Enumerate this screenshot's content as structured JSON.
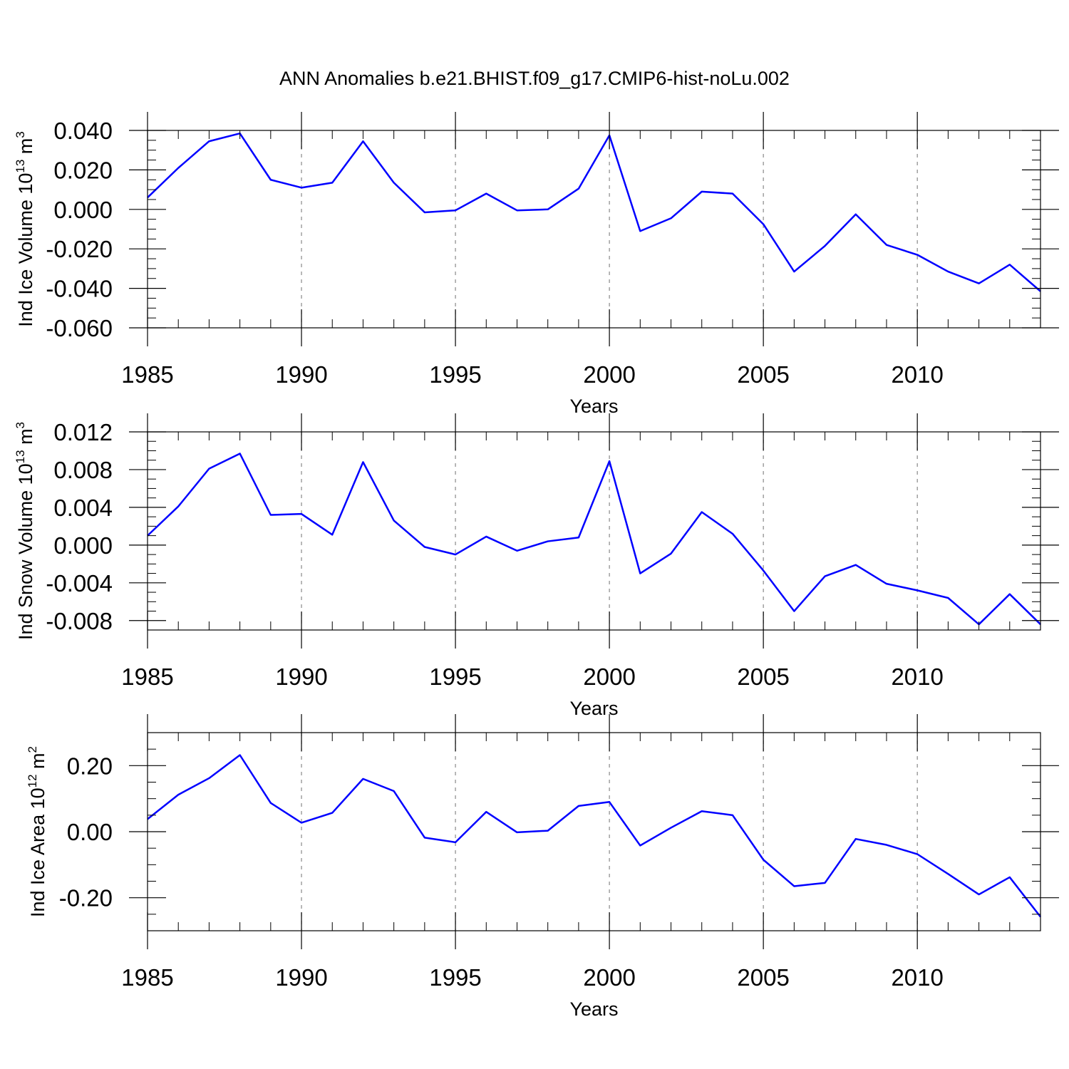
{
  "title": "ANN Anomalies b.e21.BHIST.f09_g17.CMIP6-hist-noLu.002",
  "colors": {
    "line": "#0000ff",
    "axis": "#000000",
    "grid": "#888888"
  },
  "chart_data": [
    {
      "type": "line",
      "ylabel": {
        "text": "Ind Ice Volume 10",
        "sup": "13",
        "unit": " m",
        "unit_sup": "3"
      },
      "xlabel": "Years",
      "xlim": [
        1985,
        2014
      ],
      "ylim": [
        -0.06,
        0.04
      ],
      "yticks": [
        0.04,
        0.02,
        0.0,
        -0.02,
        -0.04,
        -0.06
      ],
      "ytick_labels": [
        "0.040",
        "0.020",
        "0.000",
        "-0.020",
        "-0.040",
        "-0.060"
      ],
      "yminor_step": 0.005,
      "xticks": [
        1985,
        1990,
        1995,
        2000,
        2005,
        2010
      ],
      "xtick_labels": [
        "1985",
        "1990",
        "1995",
        "2000",
        "2005",
        "2010"
      ],
      "grid_x": true,
      "series": [
        {
          "x": [
            1985,
            1986,
            1987,
            1988,
            1989,
            1990,
            1991,
            1992,
            1993,
            1994,
            1995,
            1996,
            1997,
            1998,
            1999,
            2000,
            2001,
            2002,
            2003,
            2004,
            2005,
            2006,
            2007,
            2008,
            2009,
            2010,
            2011,
            2012,
            2013,
            2014
          ],
          "values": [
            0.006,
            0.021,
            0.0345,
            0.0385,
            0.015,
            0.011,
            0.0135,
            0.0345,
            0.0135,
            -0.0015,
            -0.0005,
            0.008,
            -0.0005,
            0.0,
            0.0105,
            0.0375,
            -0.011,
            -0.0045,
            0.009,
            0.008,
            -0.0075,
            -0.0315,
            -0.0185,
            -0.0025,
            -0.018,
            -0.023,
            -0.0315,
            -0.0375,
            -0.028,
            -0.0415
          ]
        }
      ]
    },
    {
      "type": "line",
      "ylabel": {
        "text": "Ind Snow Volume 10",
        "sup": "13",
        "unit": " m",
        "unit_sup": "3"
      },
      "xlabel": "Years",
      "xlim": [
        1985,
        2014
      ],
      "ylim": [
        -0.009,
        0.012
      ],
      "yticks": [
        0.012,
        0.008,
        0.004,
        0.0,
        -0.004,
        -0.008
      ],
      "ytick_labels": [
        "0.012",
        "0.008",
        "0.004",
        "0.000",
        "-0.004",
        "-0.008"
      ],
      "yminor_step": 0.001,
      "xticks": [
        1985,
        1990,
        1995,
        2000,
        2005,
        2010
      ],
      "xtick_labels": [
        "1985",
        "1990",
        "1995",
        "2000",
        "2005",
        "2010"
      ],
      "grid_x": true,
      "series": [
        {
          "x": [
            1985,
            1986,
            1987,
            1988,
            1989,
            1990,
            1991,
            1992,
            1993,
            1994,
            1995,
            1996,
            1997,
            1998,
            1999,
            2000,
            2001,
            2002,
            2003,
            2004,
            2005,
            2006,
            2007,
            2008,
            2009,
            2010,
            2011,
            2012,
            2013,
            2014
          ],
          "values": [
            0.001,
            0.0041,
            0.0081,
            0.0097,
            0.0032,
            0.0033,
            0.0011,
            0.0088,
            0.0026,
            -0.0002,
            -0.001,
            0.0009,
            -0.0006,
            0.0004,
            0.0008,
            0.0089,
            -0.003,
            -0.0009,
            0.0035,
            0.0012,
            -0.0027,
            -0.007,
            -0.0033,
            -0.0021,
            -0.0041,
            -0.0048,
            -0.0056,
            -0.0084,
            -0.0052,
            -0.0084
          ]
        }
      ]
    },
    {
      "type": "line",
      "ylabel": {
        "text": "Ind Ice Area 10",
        "sup": "12",
        "unit": " m",
        "unit_sup": "2"
      },
      "xlabel": "Years",
      "xlim": [
        1985,
        2014
      ],
      "ylim": [
        -0.3,
        0.3
      ],
      "yticks": [
        0.2,
        0.0,
        -0.2
      ],
      "ytick_labels": [
        "0.20",
        "0.00",
        "-0.20"
      ],
      "yminor_step": 0.05,
      "xticks": [
        1985,
        1990,
        1995,
        2000,
        2005,
        2010
      ],
      "xtick_labels": [
        "1985",
        "1990",
        "1995",
        "2000",
        "2005",
        "2010"
      ],
      "grid_x": true,
      "series": [
        {
          "x": [
            1985,
            1986,
            1987,
            1988,
            1989,
            1990,
            1991,
            1992,
            1993,
            1994,
            1995,
            1996,
            1997,
            1998,
            1999,
            2000,
            2001,
            2002,
            2003,
            2004,
            2005,
            2006,
            2007,
            2008,
            2009,
            2010,
            2011,
            2012,
            2013,
            2014
          ],
          "values": [
            0.038,
            0.112,
            0.162,
            0.232,
            0.087,
            0.027,
            0.057,
            0.16,
            0.123,
            -0.018,
            -0.032,
            0.06,
            -0.002,
            0.003,
            0.078,
            0.09,
            -0.042,
            0.012,
            0.062,
            0.05,
            -0.085,
            -0.165,
            -0.155,
            -0.022,
            -0.04,
            -0.068,
            -0.128,
            -0.19,
            -0.138,
            -0.258
          ]
        }
      ]
    }
  ]
}
